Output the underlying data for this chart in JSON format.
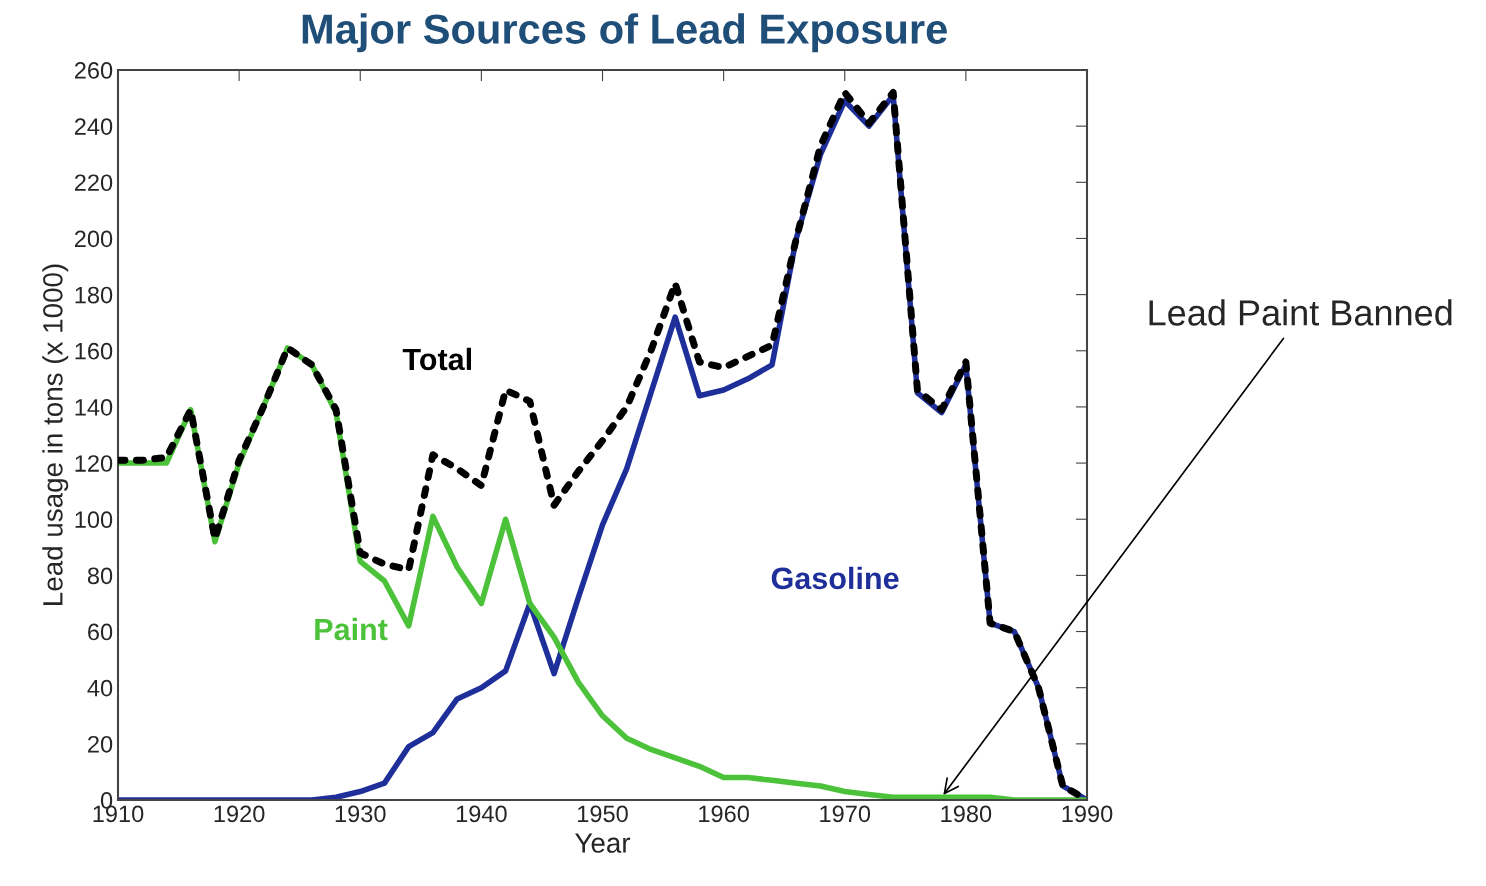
{
  "chart_data": {
    "type": "line",
    "title": "Major Sources of Lead Exposure",
    "xlabel": "Year",
    "ylabel": "Lead usage in tons (x 1000)",
    "x": [
      1910,
      1912,
      1914,
      1916,
      1918,
      1920,
      1922,
      1924,
      1926,
      1928,
      1930,
      1932,
      1934,
      1936,
      1938,
      1940,
      1942,
      1944,
      1946,
      1948,
      1950,
      1952,
      1954,
      1956,
      1958,
      1960,
      1962,
      1964,
      1966,
      1968,
      1970,
      1972,
      1974,
      1976,
      1978,
      1980,
      1982,
      1984,
      1986,
      1988,
      1990
    ],
    "series": [
      {
        "name": "Total",
        "color": "#000000",
        "line_style": "dotted",
        "values": [
          121,
          121,
          122,
          139,
          93,
          121,
          140,
          161,
          155,
          139,
          88,
          84,
          82,
          123,
          118,
          112,
          146,
          142,
          105,
          117,
          128,
          140,
          160,
          184,
          156,
          154,
          158,
          162,
          200,
          233,
          252,
          241,
          252,
          146,
          139,
          156,
          63,
          60,
          40,
          5,
          0
        ]
      },
      {
        "name": "Paint",
        "color": "#4cc23a",
        "line_style": "solid",
        "values": [
          120,
          120,
          120,
          139,
          92,
          120,
          140,
          161,
          155,
          138,
          85,
          78,
          62,
          101,
          83,
          70,
          100,
          70,
          58,
          42,
          30,
          22,
          18,
          15,
          12,
          8,
          8,
          7,
          6,
          5,
          3,
          2,
          1,
          1,
          1,
          1,
          1,
          0,
          0,
          0,
          0
        ]
      },
      {
        "name": "Gasoline",
        "color": "#1f2f9a",
        "line_style": "solid",
        "values": [
          0,
          0,
          0,
          0,
          0,
          0,
          0,
          0,
          0,
          1,
          3,
          6,
          19,
          24,
          36,
          40,
          46,
          70,
          45,
          72,
          98,
          118,
          145,
          172,
          144,
          146,
          150,
          155,
          200,
          230,
          249,
          240,
          251,
          145,
          138,
          155,
          63,
          60,
          40,
          5,
          0
        ]
      }
    ],
    "xlim": [
      1910,
      1990
    ],
    "xticks": [
      1910,
      1920,
      1930,
      1940,
      1950,
      1960,
      1970,
      1980,
      1990
    ],
    "ylim": [
      0,
      260
    ],
    "yticks": [
      0,
      20,
      40,
      60,
      80,
      100,
      120,
      140,
      160,
      180,
      200,
      220,
      240,
      260
    ],
    "grid": false,
    "legend": false,
    "annotations": [
      {
        "text": "Lead Paint Banned",
        "x": 1978,
        "y": 1
      }
    ]
  }
}
